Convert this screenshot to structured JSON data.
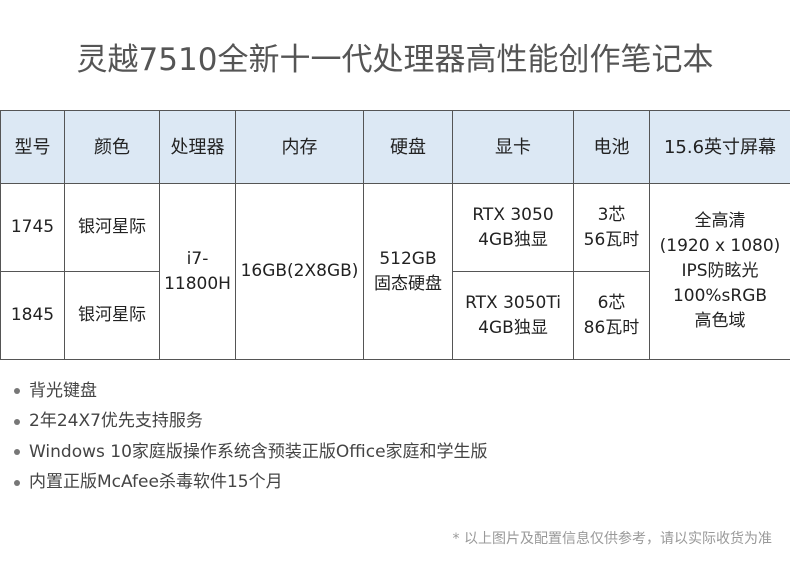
{
  "title": "灵越7510全新十一代处理器高性能创作笔记本",
  "table": {
    "headers": [
      "型号",
      "颜色",
      "处理器",
      "内存",
      "硬盘",
      "显卡",
      "电池",
      "15.6英寸屏幕"
    ],
    "rows": [
      {
        "model": "1745",
        "color": "银河星际",
        "gpu": [
          "RTX 3050",
          "4GB独显"
        ],
        "battery": [
          "3芯",
          "56瓦时"
        ]
      },
      {
        "model": "1845",
        "color": "银河星际",
        "gpu": [
          "RTX 3050Ti",
          "4GB独显"
        ],
        "battery": [
          "6芯",
          "86瓦时"
        ]
      }
    ],
    "shared": {
      "cpu": [
        "i7-",
        "11800H"
      ],
      "memory": "16GB(2X8GB)",
      "storage": [
        "512GB",
        "固态硬盘"
      ],
      "screen": [
        "全高清",
        "(1920 x 1080)",
        "IPS防眩光",
        "100%sRGB",
        "高色域"
      ]
    },
    "header_bg": "#dce8f4"
  },
  "features": [
    "背光键盘",
    "2年24X7优先支持服务",
    "Windows 10家庭版操作系统含预装正版Office家庭和学生版",
    "内置正版McAfee杀毒软件15个月"
  ],
  "note": "* 以上图片及配置信息仅供参考，请以实际收货为准"
}
